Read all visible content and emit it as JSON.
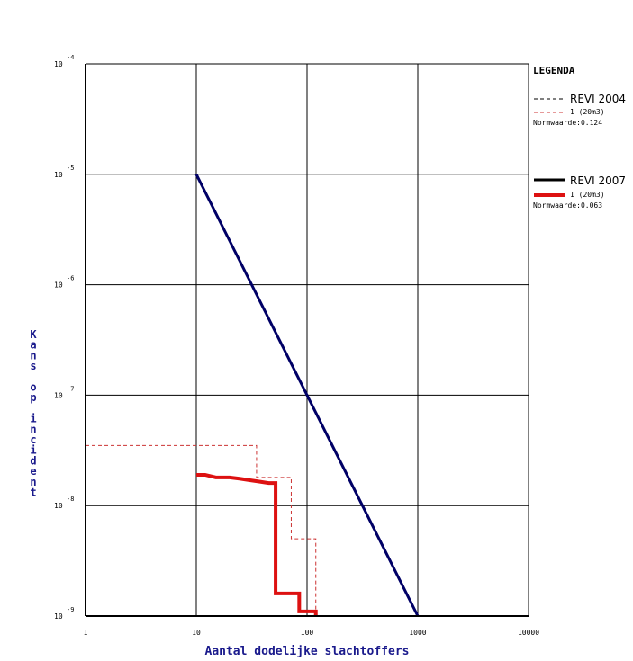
{
  "chart_data": {
    "type": "line",
    "title": "",
    "xlabel": "Aantal dodelijke slachtoffers",
    "ylabel": "Kans op incident",
    "x_scale": "log",
    "y_scale": "log",
    "xlim": [
      1,
      10000
    ],
    "ylim": [
      1e-09,
      0.0001
    ],
    "grid": true,
    "x_ticks": [
      "1",
      "10",
      "100",
      "1000",
      "10000"
    ],
    "y_ticks": [
      {
        "base": "10",
        "exp": "-9"
      },
      {
        "base": "10",
        "exp": "-8"
      },
      {
        "base": "10",
        "exp": "-7"
      },
      {
        "base": "10",
        "exp": "-6"
      },
      {
        "base": "10",
        "exp": "-5"
      },
      {
        "base": "10",
        "exp": "-4"
      }
    ],
    "norm_line": {
      "color": "#000066",
      "points": [
        [
          10,
          1e-05
        ],
        [
          1000,
          1e-09
        ]
      ]
    },
    "series": [
      {
        "style": "dashed",
        "color": "#cc3333",
        "points": [
          [
            1,
            1e-07
          ],
          [
            1,
            3.5e-08
          ],
          [
            35,
            3.5e-08
          ],
          [
            35,
            1.8e-08
          ],
          [
            72,
            1.8e-08
          ],
          [
            72,
            5e-09
          ],
          [
            120,
            5e-09
          ],
          [
            120,
            1e-09
          ]
        ]
      },
      {
        "style": "solid",
        "color": "#dd1111",
        "points": [
          [
            10,
            1.9e-08
          ],
          [
            12,
            1.9e-08
          ],
          [
            15,
            1.8e-08
          ],
          [
            20,
            1.8e-08
          ],
          [
            25,
            1.75e-08
          ],
          [
            30,
            1.7e-08
          ],
          [
            37,
            1.65e-08
          ],
          [
            45,
            1.6e-08
          ],
          [
            52,
            1.6e-08
          ],
          [
            52,
            1.6e-09
          ],
          [
            85,
            1.6e-09
          ],
          [
            85,
            1.1e-09
          ],
          [
            120,
            1.1e-09
          ],
          [
            120,
            1e-09
          ]
        ]
      }
    ],
    "legend": {
      "placement": "right",
      "title": "LEGENDA",
      "groups": [
        {
          "name": "REVI 2004",
          "item": "1 (20m3)",
          "norm": "Normwaarde:0.124",
          "name_style": "dashed",
          "name_color": "#000000",
          "item_color": "#cc3333"
        },
        {
          "name": "REVI 2007",
          "item": "1 (20m3)",
          "norm": "Normwaarde:0.063",
          "name_style": "solid",
          "name_color": "#000000",
          "item_color": "#dd1111"
        }
      ]
    }
  }
}
